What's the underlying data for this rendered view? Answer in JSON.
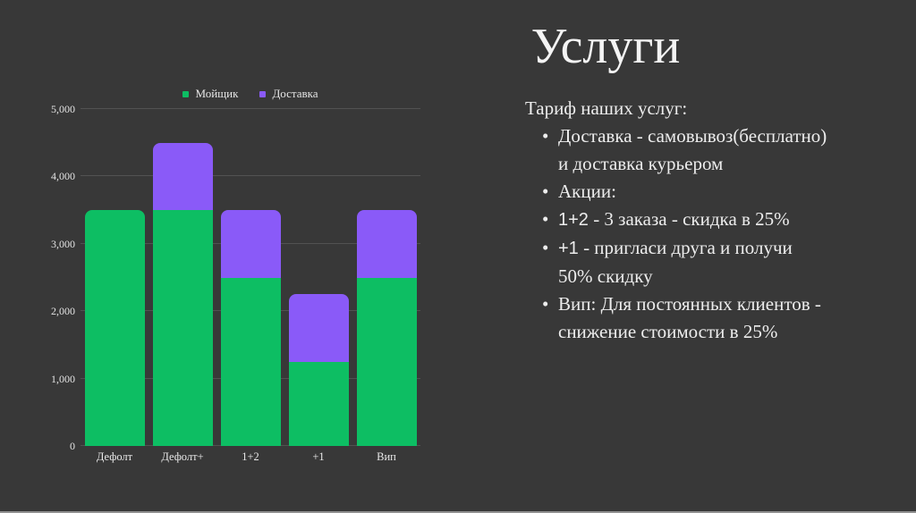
{
  "title": "Услуги",
  "ui": {
    "bullet_glyph": "•"
  },
  "colors": {
    "background": "#383838",
    "washer_green": "#0dbe63",
    "delivery_purple": "#8a5af8",
    "gridline": "#525252",
    "text": "#ededed",
    "title_text": "#f4f4f4"
  },
  "tariff": {
    "intro": "Тариф наших услуг:",
    "bullets": [
      {
        "prefix": "",
        "lines": [
          "Доставка - самовывоз(бесплатно)",
          "и доставка курьером"
        ]
      },
      {
        "prefix": "",
        "lines": [
          "Акции:"
        ]
      },
      {
        "prefix": "1+2",
        "lines": [
          " - 3 заказа - скидка в 25%"
        ]
      },
      {
        "prefix": "+1",
        "lines": [
          " - пригласи друга и получи",
          "50% скидку"
        ]
      },
      {
        "prefix": "",
        "lines": [
          "Вип: Для постоянных клиентов -",
          "снижение стоимости в 25%"
        ]
      }
    ]
  },
  "chart_data": {
    "type": "bar",
    "stacked": true,
    "title": "",
    "categories": [
      "Дефолт",
      "Дефолт+",
      "1+2",
      "+1",
      "Вип"
    ],
    "series": [
      {
        "name": "Мойщик",
        "color": "#0dbe63",
        "values": [
          3500,
          3500,
          2500,
          1250,
          2500
        ]
      },
      {
        "name": "Доставка",
        "color": "#8a5af8",
        "values": [
          0,
          1000,
          1000,
          1000,
          1000
        ]
      }
    ],
    "totals": [
      3500,
      4500,
      3500,
      2250,
      3500
    ],
    "xlabel": "",
    "ylabel": "",
    "ylim": [
      0,
      5000
    ],
    "yticks": [
      0,
      1000,
      2000,
      3000,
      4000,
      5000
    ],
    "ytick_labels": [
      "0",
      "1,000",
      "2,000",
      "3,000",
      "4,000",
      "5,000"
    ],
    "grid": true,
    "legend_position": "top"
  }
}
